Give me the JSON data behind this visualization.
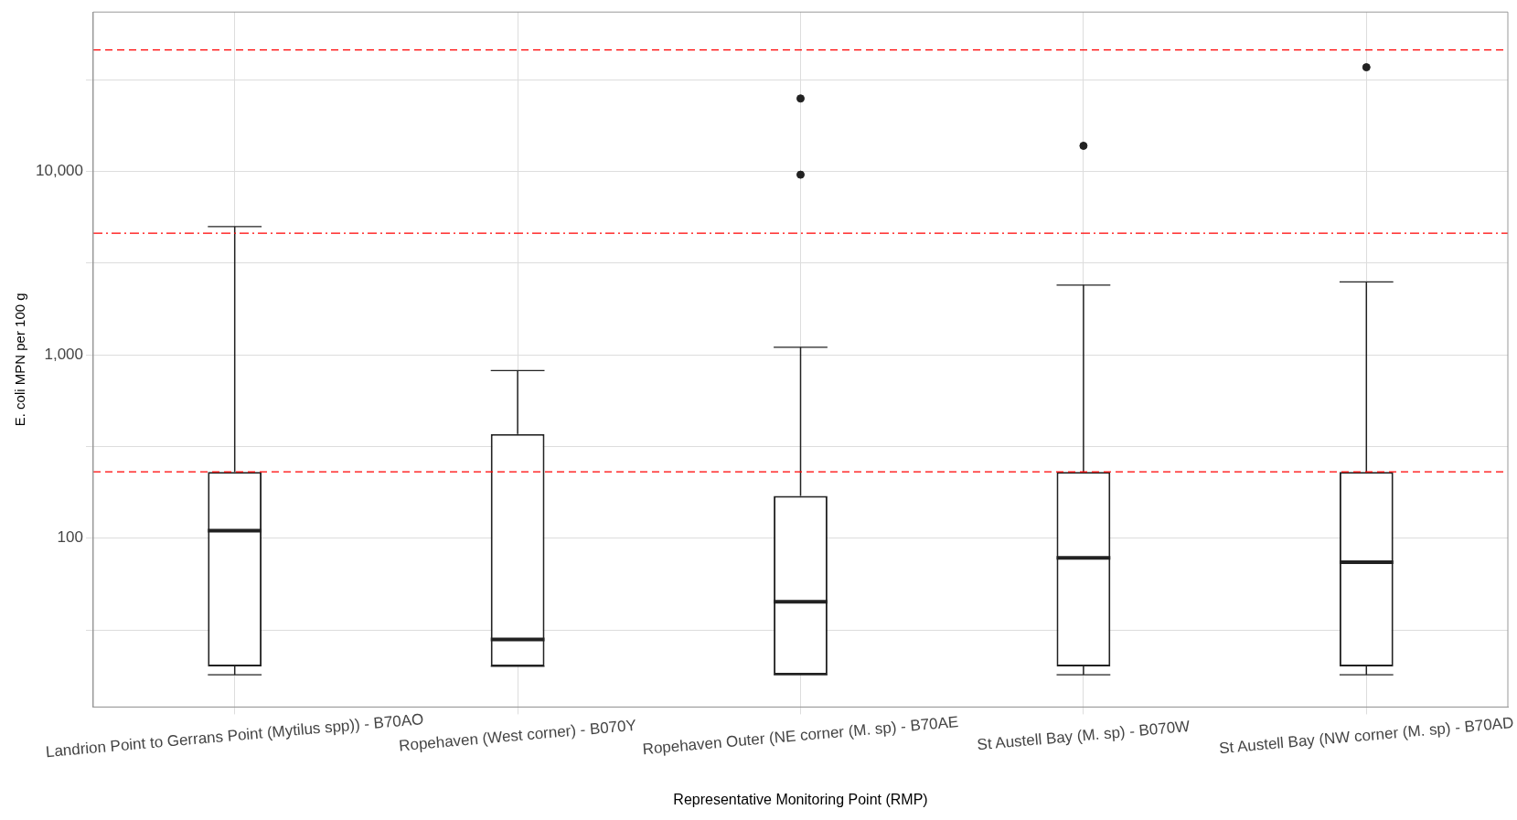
{
  "chart_data": {
    "type": "box",
    "xlabel": "Representative Monitoring Point (RMP)",
    "ylabel": "E. coli MPN per 100 g",
    "categories": [
      "Landrion Point to Gerrans Point (Mytilus spp)) - B70AO",
      "Ropehaven (West corner) - B070Y",
      "Ropehaven Outer (NE corner (M. sp) - B70AE",
      "St Austell Bay (M. sp) - B070W",
      "St Austell Bay (NW corner (M. sp) - B70AD"
    ],
    "color": "#222222",
    "boxes": [
      {
        "low": 18,
        "q1": 20,
        "median": 110,
        "q3": 230,
        "high": 5000
      },
      {
        "low": 20,
        "q1": 20,
        "median": 28,
        "q3": 370,
        "high": 820
      },
      {
        "low": 18,
        "q1": 18,
        "median": 45,
        "q3": 170,
        "high": 1100,
        "outliers": [
          9600,
          25000
        ]
      },
      {
        "low": 18,
        "q1": 20,
        "median": 78,
        "q3": 230,
        "high": 2400,
        "outliers": [
          13800
        ]
      },
      {
        "low": 18,
        "q1": 20,
        "median": 74,
        "q3": 230,
        "high": 2500,
        "outliers": [
          37000
        ]
      }
    ],
    "log": "y",
    "ylim": [
      12,
      74000
    ],
    "yticks": [
      {
        "value": 31.6,
        "label": null
      },
      {
        "value": 100,
        "label": "100"
      },
      {
        "value": 316,
        "label": null
      },
      {
        "value": 1000,
        "label": "1,000"
      },
      {
        "value": 3160,
        "label": null
      },
      {
        "value": 10000,
        "label": "10,000"
      },
      {
        "value": 31600,
        "label": null
      }
    ],
    "grid": true,
    "legend": false,
    "ref_lines": [
      {
        "axis": "y",
        "value": 230,
        "color": "#ff0000",
        "line_style": "dashed"
      },
      {
        "axis": "y",
        "value": 4600,
        "color": "#ff0000",
        "line_style": "dashdot"
      },
      {
        "axis": "y",
        "value": 46000,
        "color": "#ff0000",
        "line_style": "dashed"
      }
    ]
  }
}
